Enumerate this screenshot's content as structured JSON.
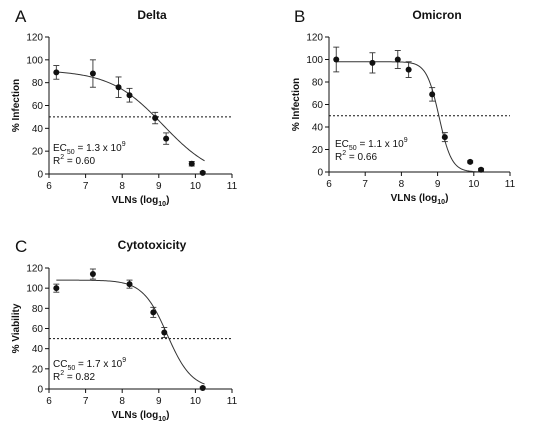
{
  "chart_data": [
    {
      "type": "scatter",
      "panel": "A",
      "title": "Delta",
      "xlabel": "VLNs",
      "xlabel_sub": "(log10)",
      "ylabel": "% Infection",
      "xlim": [
        6,
        11
      ],
      "ylim": [
        0,
        120
      ],
      "xticks": [
        "6",
        "7",
        "8",
        "9",
        "10",
        "11"
      ],
      "yticks": [
        "0",
        "20",
        "40",
        "60",
        "80",
        "100",
        "120"
      ],
      "reference_line_y": 50,
      "annotation": {
        "line1_prefix": "EC",
        "line1_sub": "50",
        "line1_value": " = 1.3 x 10",
        "line1_exp": "9",
        "line2_prefix": "R",
        "line2_exp": "2",
        "line2_value": " = 0.60"
      },
      "points": [
        {
          "x": 6.2,
          "y": 89,
          "err": 6
        },
        {
          "x": 7.2,
          "y": 88,
          "err": 12
        },
        {
          "x": 7.9,
          "y": 76,
          "err": 9
        },
        {
          "x": 8.2,
          "y": 69,
          "err": 6
        },
        {
          "x": 8.9,
          "y": 49,
          "err": 5
        },
        {
          "x": 9.2,
          "y": 31,
          "err": 5
        },
        {
          "x": 9.9,
          "y": 9,
          "err": 2
        },
        {
          "x": 10.2,
          "y": 1,
          "err": 1
        }
      ],
      "fit": {
        "top": 91,
        "bottom": -5,
        "log_ec50": 9.114,
        "hill": -0.6
      }
    },
    {
      "type": "scatter",
      "panel": "B",
      "title": "Omicron",
      "xlabel": "VLNs",
      "xlabel_sub": "(log10)",
      "ylabel": "% Infection",
      "xlim": [
        6,
        11
      ],
      "ylim": [
        0,
        120
      ],
      "xticks": [
        "6",
        "7",
        "8",
        "9",
        "10",
        "11"
      ],
      "yticks": [
        "0",
        "20",
        "40",
        "60",
        "80",
        "100",
        "120"
      ],
      "reference_line_y": 50,
      "annotation": {
        "line1_prefix": "EC",
        "line1_sub": "50",
        "line1_value": " = 1.1 x 10",
        "line1_exp": "9",
        "line2_prefix": "R",
        "line2_exp": "2",
        "line2_value": " = 0.66"
      },
      "points": [
        {
          "x": 6.2,
          "y": 100,
          "err": 11
        },
        {
          "x": 7.2,
          "y": 97,
          "err": 9
        },
        {
          "x": 7.9,
          "y": 100,
          "err": 8
        },
        {
          "x": 8.2,
          "y": 91,
          "err": 7
        },
        {
          "x": 8.85,
          "y": 69,
          "err": 6
        },
        {
          "x": 9.2,
          "y": 31,
          "err": 4
        },
        {
          "x": 9.9,
          "y": 9,
          "err": 1
        },
        {
          "x": 10.2,
          "y": 2,
          "err": 1
        }
      ],
      "fit": {
        "top": 98,
        "bottom": 0,
        "log_ec50": 9.041,
        "hill": -2.5
      }
    },
    {
      "type": "scatter",
      "panel": "C",
      "title": "Cytotoxicity",
      "xlabel": "VLNs",
      "xlabel_sub": "(log10)",
      "ylabel": "% Viability",
      "xlim": [
        6,
        11
      ],
      "ylim": [
        0,
        120
      ],
      "xticks": [
        "6",
        "7",
        "8",
        "9",
        "10",
        "11"
      ],
      "yticks": [
        "0",
        "20",
        "40",
        "60",
        "80",
        "100",
        "120"
      ],
      "reference_line_y": 50,
      "annotation": {
        "line1_prefix": "CC",
        "line1_sub": "50",
        "line1_value": " = 1.7 x 10",
        "line1_exp": "9",
        "line2_prefix": "R",
        "line2_exp": "2",
        "line2_value": " = 0.82"
      },
      "points": [
        {
          "x": 6.2,
          "y": 100,
          "err": 4
        },
        {
          "x": 7.2,
          "y": 114,
          "err": 5
        },
        {
          "x": 8.2,
          "y": 104,
          "err": 4
        },
        {
          "x": 8.85,
          "y": 76,
          "err": 5
        },
        {
          "x": 9.15,
          "y": 56,
          "err": 5
        },
        {
          "x": 10.2,
          "y": 1,
          "err": 1
        }
      ],
      "fit": {
        "top": 108,
        "bottom": 0,
        "log_ec50": 9.23,
        "hill": -1.3
      }
    }
  ]
}
